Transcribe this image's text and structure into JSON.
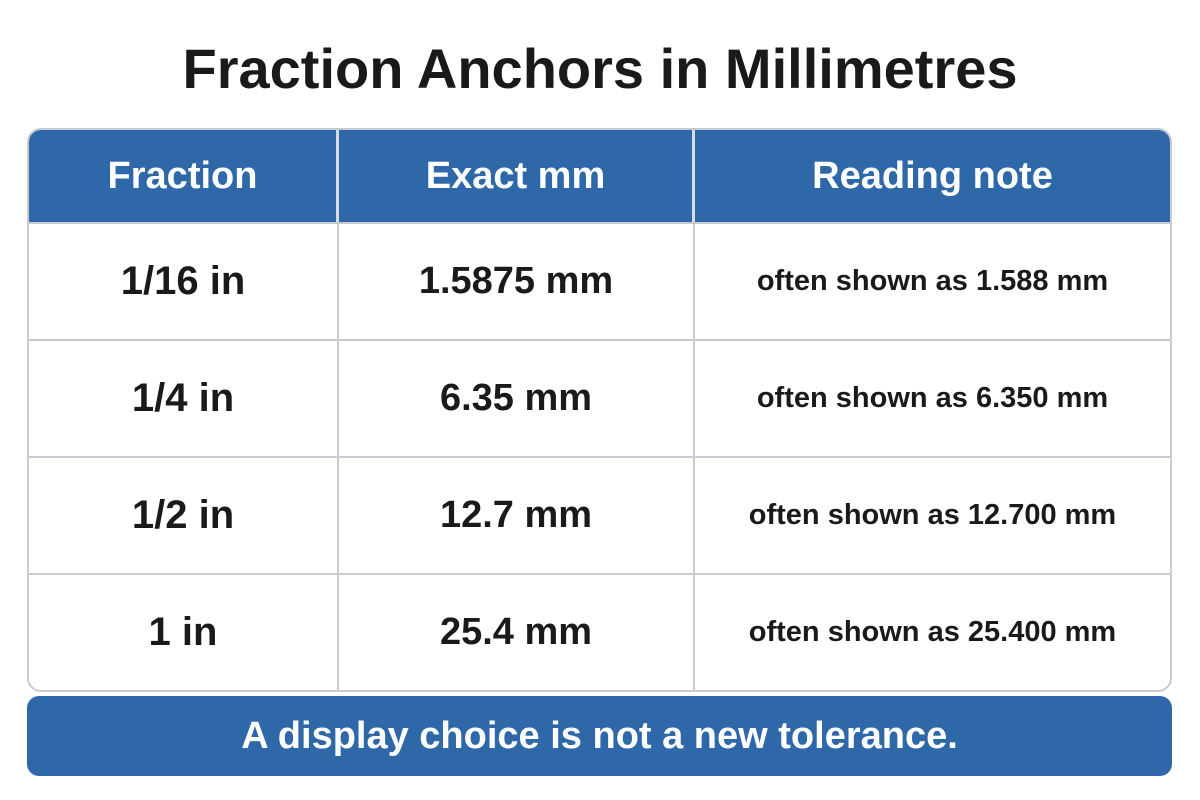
{
  "title": "Fraction Anchors in Millimetres",
  "table": {
    "header": [
      "Fraction",
      "Exact mm",
      "Reading note"
    ],
    "rows": [
      [
        "1/16 in",
        "1.5875 mm",
        "often shown as 1.588 mm"
      ],
      [
        "1/4 in",
        "6.35 mm",
        "often shown as 6.350 mm"
      ],
      [
        "1/2 in",
        "12.7 mm",
        "often shown as 12.700 mm"
      ],
      [
        "1 in",
        "25.4 mm",
        "often shown as 25.400 mm"
      ]
    ]
  },
  "footer": "A display choice is not a new tolerance."
}
